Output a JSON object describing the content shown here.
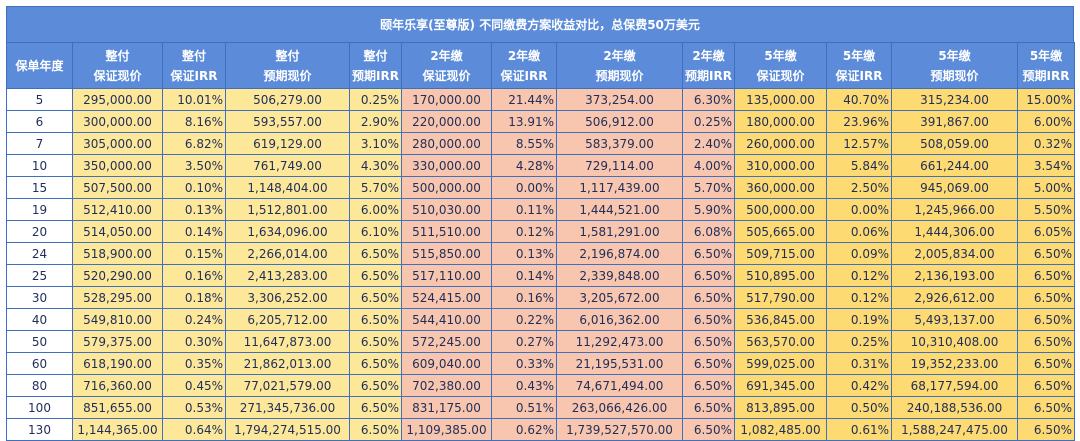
{
  "title": "颐年乐享(至尊版) 不同缴费方案收益对比，总保费50万美元",
  "year_header": "保单年度",
  "headers": [
    [
      "整付",
      "保证现价"
    ],
    [
      "整付",
      "保证IRR"
    ],
    [
      "整付",
      "预期现价"
    ],
    [
      "整付",
      "预期IRR"
    ],
    [
      "2年缴",
      "保证现价"
    ],
    [
      "2年缴",
      "保证IRR"
    ],
    [
      "2年缴",
      "预期现价"
    ],
    [
      "2年缴",
      "预期IRR"
    ],
    [
      "5年缴",
      "保证现价"
    ],
    [
      "5年缴",
      "保证IRR"
    ],
    [
      "5年缴",
      "预期现价"
    ],
    [
      "5年缴",
      "预期IRR"
    ]
  ],
  "rows": [
    [
      "5",
      "295,000.00",
      "10.01%",
      "506,279.00",
      "0.25%",
      "170,000.00",
      "21.44%",
      "373,254.00",
      "6.30%",
      "135,000.00",
      "40.70%",
      "315,234.00",
      "15.00%"
    ],
    [
      "6",
      "300,000.00",
      "8.16%",
      "593,557.00",
      "2.90%",
      "220,000.00",
      "13.91%",
      "506,912.00",
      "0.25%",
      "180,000.00",
      "23.96%",
      "391,867.00",
      "6.00%"
    ],
    [
      "7",
      "305,000.00",
      "6.82%",
      "619,129.00",
      "3.10%",
      "280,000.00",
      "8.55%",
      "583,379.00",
      "2.40%",
      "260,000.00",
      "12.57%",
      "508,059.00",
      "0.32%"
    ],
    [
      "10",
      "350,000.00",
      "3.50%",
      "761,749.00",
      "4.30%",
      "330,000.00",
      "4.28%",
      "729,114.00",
      "4.00%",
      "310,000.00",
      "5.84%",
      "661,244.00",
      "3.54%"
    ],
    [
      "15",
      "507,500.00",
      "0.10%",
      "1,148,404.00",
      "5.70%",
      "500,000.00",
      "0.00%",
      "1,117,439.00",
      "5.70%",
      "360,000.00",
      "2.50%",
      "945,069.00",
      "5.00%"
    ],
    [
      "19",
      "512,410.00",
      "0.13%",
      "1,512,801.00",
      "6.00%",
      "510,030.00",
      "0.11%",
      "1,444,521.00",
      "5.90%",
      "500,000.00",
      "0.00%",
      "1,245,966.00",
      "5.50%"
    ],
    [
      "20",
      "514,050.00",
      "0.14%",
      "1,634,096.00",
      "6.10%",
      "511,510.00",
      "0.12%",
      "1,581,291.00",
      "6.08%",
      "505,665.00",
      "0.06%",
      "1,444,306.00",
      "6.05%"
    ],
    [
      "24",
      "518,900.00",
      "0.15%",
      "2,266,014.00",
      "6.50%",
      "515,850.00",
      "0.13%",
      "2,196,874.00",
      "6.50%",
      "509,715.00",
      "0.09%",
      "2,005,834.00",
      "6.50%"
    ],
    [
      "25",
      "520,290.00",
      "0.16%",
      "2,413,283.00",
      "6.50%",
      "517,110.00",
      "0.14%",
      "2,339,848.00",
      "6.50%",
      "510,895.00",
      "0.12%",
      "2,136,193.00",
      "6.50%"
    ],
    [
      "30",
      "528,295.00",
      "0.18%",
      "3,306,252.00",
      "6.50%",
      "524,415.00",
      "0.16%",
      "3,205,672.00",
      "6.50%",
      "517,790.00",
      "0.12%",
      "2,926,612.00",
      "6.50%"
    ],
    [
      "40",
      "549,810.00",
      "0.24%",
      "6,205,712.00",
      "6.50%",
      "544,410.00",
      "0.22%",
      "6,016,362.00",
      "6.50%",
      "536,845.00",
      "0.19%",
      "5,493,137.00",
      "6.50%"
    ],
    [
      "50",
      "579,375.00",
      "0.30%",
      "11,647,873.00",
      "6.50%",
      "572,245.00",
      "0.27%",
      "11,292,473.00",
      "6.50%",
      "563,570.00",
      "0.25%",
      "10,310,408.00",
      "6.50%"
    ],
    [
      "60",
      "618,190.00",
      "0.35%",
      "21,862,013.00",
      "6.50%",
      "609,040.00",
      "0.33%",
      "21,195,531.00",
      "6.50%",
      "599,025.00",
      "0.31%",
      "19,352,233.00",
      "6.50%"
    ],
    [
      "80",
      "716,360.00",
      "0.45%",
      "77,021,579.00",
      "6.50%",
      "702,380.00",
      "0.43%",
      "74,671,494.00",
      "6.50%",
      "691,345.00",
      "0.42%",
      "68,177,594.00",
      "6.50%"
    ],
    [
      "100",
      "851,655.00",
      "0.53%",
      "271,345,736.00",
      "6.50%",
      "831,175.00",
      "0.51%",
      "263,066,426.00",
      "6.50%",
      "813,895.00",
      "0.50%",
      "240,188,536.00",
      "6.50%"
    ],
    [
      "130",
      "1,144,365.00",
      "0.64%",
      "1,794,274,515.00",
      "6.50%",
      "1,109,385.00",
      "0.62%",
      "1,739,527,570.00",
      "6.50%",
      "1,082,485.00",
      "0.61%",
      "1,588,247,475.00",
      "6.50%"
    ]
  ],
  "colors": {
    "header_bg": "#5b8bd9",
    "border": "#3f6fbf",
    "lump_sum_bg": "#fde89a",
    "two_year_bg": "#f8c6ae",
    "five_year_bg": "#fddb72",
    "text": "#1f2d5a"
  }
}
